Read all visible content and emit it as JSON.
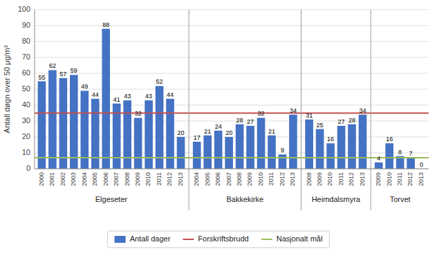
{
  "chart_data": {
    "type": "bar",
    "ylabel": "Antall døgn over 50 μg/m³",
    "bars": {
      "name": "Antall dager",
      "color": "#4472C4"
    },
    "groups": [
      {
        "name": "Elgeseter",
        "categories": [
          "2000",
          "2001",
          "2002",
          "2003",
          "2004",
          "2005",
          "2006",
          "2007",
          "2008",
          "2009",
          "2010",
          "2011",
          "2012",
          "2013"
        ],
        "values": [
          55,
          62,
          57,
          59,
          49,
          44,
          88,
          41,
          43,
          32,
          43,
          52,
          44,
          20
        ]
      },
      {
        "name": "Bakkekirke",
        "categories": [
          "2004",
          "2005",
          "2006",
          "2007",
          "2008",
          "2009",
          "2010",
          "2011",
          "2012",
          "2013"
        ],
        "values": [
          17,
          21,
          24,
          20,
          28,
          27,
          32,
          21,
          9,
          34
        ]
      },
      {
        "name": "Heimdalsmyra",
        "categories": [
          "2008",
          "2009",
          "2010",
          "2011",
          "2012",
          "2013"
        ],
        "values": [
          31,
          25,
          16,
          27,
          28,
          34
        ]
      },
      {
        "name": "Torvet",
        "categories": [
          "2009",
          "2010",
          "2011",
          "2012",
          "2013"
        ],
        "values": [
          4,
          16,
          8,
          7,
          0
        ]
      }
    ],
    "reference_lines": [
      {
        "name": "Forskriftsbrudd",
        "value": 35,
        "color": "#C0504D"
      },
      {
        "name": "Nasjonalt mål",
        "value": 7,
        "color": "#9BBB59"
      }
    ],
    "ylim": [
      0,
      100
    ],
    "yticks": [
      0,
      10,
      20,
      30,
      40,
      50,
      60,
      70,
      80,
      90,
      100
    ],
    "grid": true,
    "data_labels": true,
    "legend": "bottom"
  }
}
